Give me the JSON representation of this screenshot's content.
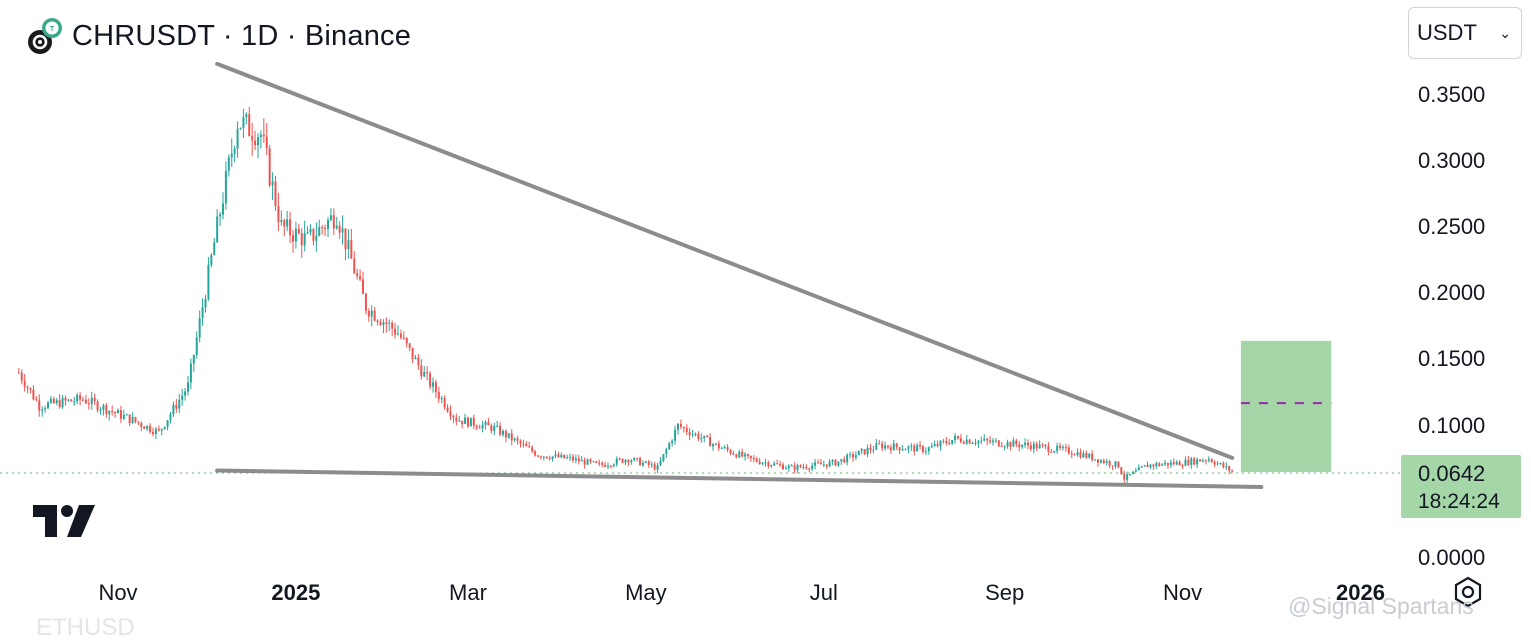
{
  "header": {
    "title": "CHRUSDT · 1D · Binance",
    "logo_icon": "chromia-coin-icon"
  },
  "currency_select": {
    "value": "USDT",
    "chevron_icon": "chevron-down-icon"
  },
  "price_label": {
    "price": "0.0642",
    "countdown": "18:24:24"
  },
  "watermark": "@Signal Spartans",
  "ghost_text": "ETHUSD",
  "colors": {
    "up": "#26a69a",
    "down": "#ef5350",
    "trendline": "#8c8c8c",
    "projection": "#a5d6a7",
    "target": "#9c27b0",
    "price_line": "#66bb6a"
  },
  "chart_data": {
    "type": "candlestick",
    "title": "CHRUSDT · 1D · Binance",
    "y_ticks": [
      "0.0000",
      "0.1000",
      "0.1500",
      "0.2000",
      "0.2500",
      "0.3000",
      "0.3500"
    ],
    "x_ticks": [
      {
        "label": "Nov",
        "date": "2024-11-01",
        "bold": false
      },
      {
        "label": "2025",
        "date": "2025-01-01",
        "bold": true
      },
      {
        "label": "Mar",
        "date": "2025-03-01",
        "bold": false
      },
      {
        "label": "May",
        "date": "2025-05-01",
        "bold": false
      },
      {
        "label": "Jul",
        "date": "2025-07-01",
        "bold": false
      },
      {
        "label": "Sep",
        "date": "2025-09-01",
        "bold": false
      },
      {
        "label": "Nov",
        "date": "2025-11-01",
        "bold": false
      },
      {
        "label": "2026",
        "date": "2026-01-01",
        "bold": true
      }
    ],
    "approx_close_path": [
      {
        "date": "2024-09-28",
        "close": 0.14
      },
      {
        "date": "2024-10-05",
        "close": 0.115
      },
      {
        "date": "2024-10-20",
        "close": 0.12
      },
      {
        "date": "2024-11-05",
        "close": 0.105
      },
      {
        "date": "2024-11-15",
        "close": 0.095
      },
      {
        "date": "2024-11-25",
        "close": 0.13
      },
      {
        "date": "2024-12-05",
        "close": 0.25
      },
      {
        "date": "2024-12-12",
        "close": 0.33
      },
      {
        "date": "2024-12-20",
        "close": 0.32
      },
      {
        "date": "2024-12-27",
        "close": 0.25
      },
      {
        "date": "2025-01-05",
        "close": 0.24
      },
      {
        "date": "2025-01-15",
        "close": 0.26
      },
      {
        "date": "2025-01-25",
        "close": 0.19
      },
      {
        "date": "2025-02-05",
        "close": 0.17
      },
      {
        "date": "2025-02-15",
        "close": 0.135
      },
      {
        "date": "2025-02-25",
        "close": 0.105
      },
      {
        "date": "2025-03-10",
        "close": 0.098
      },
      {
        "date": "2025-03-25",
        "close": 0.078
      },
      {
        "date": "2025-04-05",
        "close": 0.075
      },
      {
        "date": "2025-04-15",
        "close": 0.07
      },
      {
        "date": "2025-04-25",
        "close": 0.075
      },
      {
        "date": "2025-05-05",
        "close": 0.068
      },
      {
        "date": "2025-05-12",
        "close": 0.1
      },
      {
        "date": "2025-05-25",
        "close": 0.085
      },
      {
        "date": "2025-06-05",
        "close": 0.075
      },
      {
        "date": "2025-06-20",
        "close": 0.068
      },
      {
        "date": "2025-07-05",
        "close": 0.072
      },
      {
        "date": "2025-07-20",
        "close": 0.085
      },
      {
        "date": "2025-08-05",
        "close": 0.082
      },
      {
        "date": "2025-08-15",
        "close": 0.09
      },
      {
        "date": "2025-08-25",
        "close": 0.088
      },
      {
        "date": "2025-09-10",
        "close": 0.085
      },
      {
        "date": "2025-09-25",
        "close": 0.08
      },
      {
        "date": "2025-10-05",
        "close": 0.073
      },
      {
        "date": "2025-10-10",
        "close": 0.07
      },
      {
        "date": "2025-10-12",
        "close": 0.06
      },
      {
        "date": "2025-10-20",
        "close": 0.07
      },
      {
        "date": "2025-11-01",
        "close": 0.072
      },
      {
        "date": "2025-11-10",
        "close": 0.075
      },
      {
        "date": "2025-11-19",
        "close": 0.0642
      }
    ],
    "last_price": 0.0642,
    "trendlines": [
      {
        "name": "upper",
        "from": {
          "date": "2024-12-05",
          "price": 0.3732
        },
        "to": {
          "date": "2025-11-18",
          "price": 0.0756
        }
      },
      {
        "name": "lower",
        "from": {
          "date": "2024-12-05",
          "price": 0.0661
        },
        "to": {
          "date": "2025-11-28",
          "price": 0.0536
        }
      }
    ],
    "projection": {
      "from_date": "2025-11-21",
      "to_date": "2025-12-22",
      "low": 0.065,
      "high": 0.164,
      "target": 0.117
    }
  }
}
